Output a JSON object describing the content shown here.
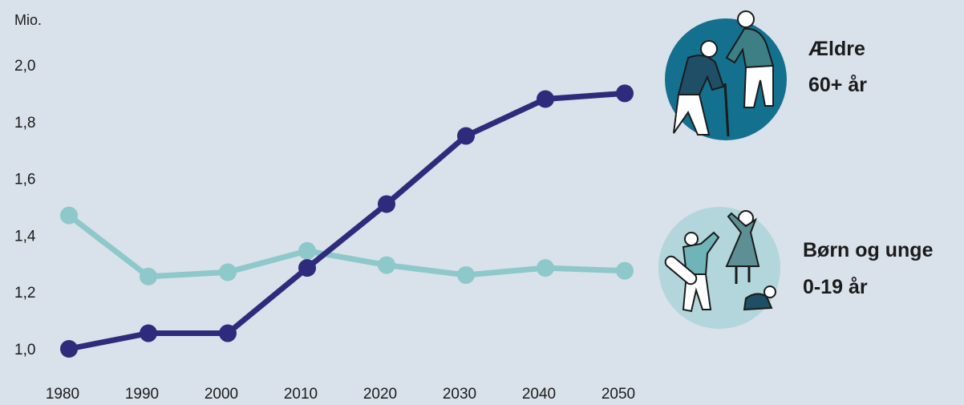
{
  "chart_data": {
    "type": "line",
    "title": "",
    "ylabel": "Mio.",
    "xlabel": "",
    "x": [
      1980,
      1990,
      2000,
      2010,
      2020,
      2030,
      2040,
      2050
    ],
    "x_tick_labels": [
      "1980",
      "1990",
      "2000",
      "2010",
      "2020",
      "2030",
      "2040",
      "2050"
    ],
    "y_tick_labels": [
      "2,0",
      "1,8",
      "1,6",
      "1,4",
      "1,2",
      "1,0"
    ],
    "ylim": [
      1.0,
      2.0
    ],
    "grid": false,
    "legend_placement": "right",
    "series": [
      {
        "name_lines": [
          "Ældre",
          "60+ år"
        ],
        "values": [
          1.0,
          1.055,
          1.055,
          1.285,
          1.51,
          1.75,
          1.88,
          1.9
        ],
        "color": "#2e2b7c",
        "icon": "elderly-people-icon",
        "icon_bg": "#13708f"
      },
      {
        "name_lines": [
          "Børn og unge",
          "0-19 år"
        ],
        "values": [
          1.47,
          1.255,
          1.27,
          1.345,
          1.295,
          1.26,
          1.285,
          1.275
        ],
        "color": "#8dc8cb",
        "icon": "children-icon",
        "icon_bg": "#b2d6db"
      }
    ]
  }
}
